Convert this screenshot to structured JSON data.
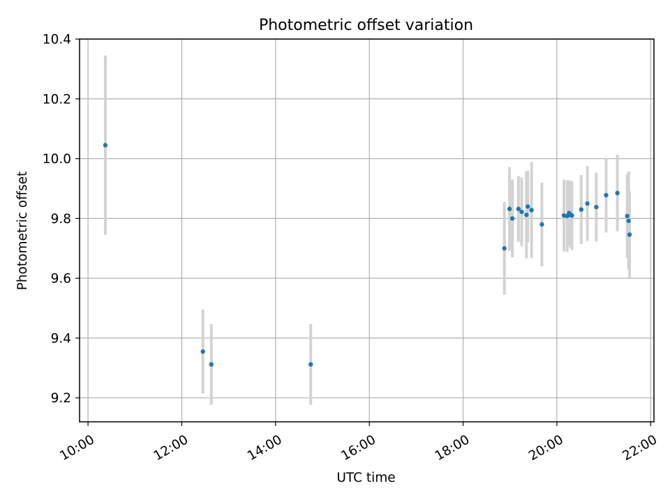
{
  "chart_data": {
    "type": "scatter",
    "title": "Photometric offset variation",
    "xlabel": "UTC time",
    "ylabel": "Photometric offset",
    "x_unit": "hours UTC",
    "xlim": [
      9.82,
      22.07
    ],
    "ylim": [
      9.12,
      10.4
    ],
    "x_ticks": [
      10,
      12,
      14,
      16,
      18,
      20,
      22
    ],
    "x_tick_labels": [
      "10:00",
      "12:00",
      "14:00",
      "16:00",
      "18:00",
      "20:00",
      "22:00"
    ],
    "y_ticks": [
      9.2,
      9.4,
      9.6,
      9.8,
      10.0,
      10.2,
      10.4
    ],
    "y_tick_labels": [
      "9.2",
      "9.4",
      "9.6",
      "9.8",
      "10.0",
      "10.2",
      "10.4"
    ],
    "grid": true,
    "colors": {
      "point": "#1f77b4",
      "errorbar": "#d3d3d3",
      "grid": "#b0b0b0"
    },
    "points": [
      {
        "x": 10.37,
        "y": 10.045,
        "err": 0.3
      },
      {
        "x": 12.45,
        "y": 9.355,
        "err": 0.14
      },
      {
        "x": 12.63,
        "y": 9.312,
        "err": 0.135
      },
      {
        "x": 14.75,
        "y": 9.312,
        "err": 0.135
      },
      {
        "x": 18.88,
        "y": 9.7,
        "err": 0.155
      },
      {
        "x": 18.99,
        "y": 9.832,
        "err": 0.14
      },
      {
        "x": 19.05,
        "y": 9.8,
        "err": 0.13
      },
      {
        "x": 19.18,
        "y": 9.832,
        "err": 0.11
      },
      {
        "x": 19.25,
        "y": 9.822,
        "err": 0.115
      },
      {
        "x": 19.35,
        "y": 9.812,
        "err": 0.145
      },
      {
        "x": 19.38,
        "y": 9.84,
        "err": 0.12
      },
      {
        "x": 19.46,
        "y": 9.828,
        "err": 0.16
      },
      {
        "x": 19.68,
        "y": 9.78,
        "err": 0.14
      },
      {
        "x": 20.15,
        "y": 9.81,
        "err": 0.12
      },
      {
        "x": 20.22,
        "y": 9.808,
        "err": 0.12
      },
      {
        "x": 20.26,
        "y": 9.818,
        "err": 0.11
      },
      {
        "x": 20.29,
        "y": 9.812,
        "err": 0.11
      },
      {
        "x": 20.32,
        "y": 9.81,
        "err": 0.115
      },
      {
        "x": 20.52,
        "y": 9.83,
        "err": 0.115
      },
      {
        "x": 20.65,
        "y": 9.85,
        "err": 0.125
      },
      {
        "x": 20.84,
        "y": 9.838,
        "err": 0.115
      },
      {
        "x": 21.05,
        "y": 9.878,
        "err": 0.125
      },
      {
        "x": 21.29,
        "y": 9.885,
        "err": 0.128
      },
      {
        "x": 21.5,
        "y": 9.808,
        "err": 0.14
      },
      {
        "x": 21.53,
        "y": 9.792,
        "err": 0.165
      },
      {
        "x": 21.55,
        "y": 9.746,
        "err": 0.145
      }
    ]
  }
}
